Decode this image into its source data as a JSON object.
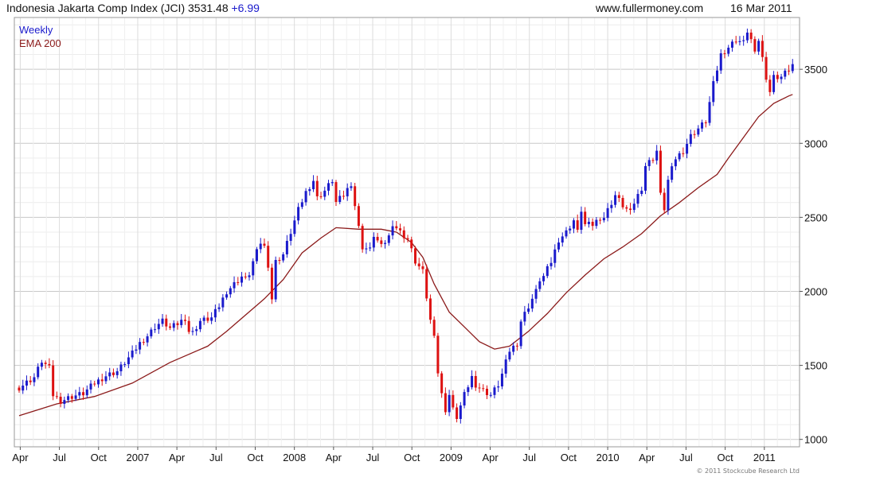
{
  "header": {
    "title": "Indonesia Jakarta Comp Index (JCI)",
    "last": "3531.48",
    "change": "+6.99",
    "site": "www.fullermoney.com",
    "date": "16 Mar 2011"
  },
  "copyright": "© 2011 Stockcube Research Ltd",
  "colors": {
    "up": "#1a1acc",
    "down": "#dd1111",
    "ema": "#8b1a1a",
    "legend_weekly": "#1a1acc",
    "legend_ema": "#8b1a1a"
  },
  "chart_data": {
    "type": "line",
    "title": "Indonesia Jakarta Comp Index (JCI)",
    "xlabel": "",
    "ylabel": "",
    "ylim": [
      950,
      3850
    ],
    "yticks": [
      1000,
      1500,
      2000,
      2500,
      3000,
      3500
    ],
    "xticks": [
      "Apr",
      "Jul",
      "Oct",
      "2007",
      "Apr",
      "Jul",
      "Oct",
      "2008",
      "Apr",
      "Jul",
      "Oct",
      "2009",
      "Apr",
      "Jul",
      "Oct",
      "2010",
      "Apr",
      "Jul",
      "Oct",
      "2011"
    ],
    "legend": [
      "Weekly",
      "EMA 200"
    ],
    "legend_position": "top-left",
    "grid": true,
    "series": [
      {
        "name": "Weekly",
        "points": [
          [
            0,
            1350
          ],
          [
            4,
            1420
          ],
          [
            6,
            1530
          ],
          [
            8,
            1480
          ],
          [
            9,
            1300
          ],
          [
            11,
            1260
          ],
          [
            14,
            1290
          ],
          [
            17,
            1310
          ],
          [
            20,
            1380
          ],
          [
            23,
            1430
          ],
          [
            26,
            1460
          ],
          [
            28,
            1520
          ],
          [
            30,
            1580
          ],
          [
            32,
            1650
          ],
          [
            34,
            1700
          ],
          [
            36,
            1760
          ],
          [
            38,
            1800
          ],
          [
            40,
            1750
          ],
          [
            42,
            1780
          ],
          [
            44,
            1820
          ],
          [
            45,
            1730
          ],
          [
            46,
            1720
          ],
          [
            48,
            1800
          ],
          [
            51,
            1820
          ],
          [
            53,
            1900
          ],
          [
            55,
            2000
          ],
          [
            57,
            2050
          ],
          [
            59,
            2100
          ],
          [
            60,
            2080
          ],
          [
            61,
            2120
          ],
          [
            62,
            2200
          ],
          [
            64,
            2330
          ],
          [
            65,
            2300
          ],
          [
            66,
            2180
          ],
          [
            67,
            1950
          ],
          [
            68,
            2200
          ],
          [
            70,
            2250
          ],
          [
            72,
            2400
          ],
          [
            74,
            2550
          ],
          [
            76,
            2670
          ],
          [
            78,
            2750
          ],
          [
            79,
            2630
          ],
          [
            81,
            2680
          ],
          [
            83,
            2750
          ],
          [
            84,
            2600
          ],
          [
            86,
            2650
          ],
          [
            88,
            2730
          ],
          [
            90,
            2430
          ],
          [
            91,
            2300
          ],
          [
            93,
            2280
          ],
          [
            94,
            2380
          ],
          [
            96,
            2300
          ],
          [
            98,
            2370
          ],
          [
            99,
            2460
          ],
          [
            101,
            2400
          ],
          [
            103,
            2350
          ],
          [
            105,
            2200
          ],
          [
            107,
            2130
          ],
          [
            108,
            1960
          ],
          [
            109,
            1800
          ],
          [
            110,
            1720
          ],
          [
            111,
            1450
          ],
          [
            112,
            1300
          ],
          [
            113,
            1200
          ],
          [
            114,
            1300
          ],
          [
            115,
            1200
          ],
          [
            116,
            1150
          ],
          [
            118,
            1300
          ],
          [
            120,
            1420
          ],
          [
            121,
            1370
          ],
          [
            123,
            1330
          ],
          [
            125,
            1300
          ],
          [
            127,
            1370
          ],
          [
            128,
            1440
          ],
          [
            130,
            1600
          ],
          [
            132,
            1650
          ],
          [
            133,
            1800
          ],
          [
            135,
            1900
          ],
          [
            137,
            2000
          ],
          [
            138,
            2080
          ],
          [
            139,
            2100
          ],
          [
            141,
            2200
          ],
          [
            143,
            2350
          ],
          [
            145,
            2400
          ],
          [
            147,
            2480
          ],
          [
            148,
            2400
          ],
          [
            149,
            2550
          ],
          [
            150,
            2450
          ],
          [
            152,
            2450
          ],
          [
            154,
            2500
          ],
          [
            155,
            2500
          ],
          [
            157,
            2600
          ],
          [
            158,
            2650
          ],
          [
            160,
            2580
          ],
          [
            162,
            2530
          ],
          [
            163,
            2600
          ],
          [
            165,
            2700
          ],
          [
            166,
            2850
          ],
          [
            168,
            2900
          ],
          [
            169,
            2950
          ],
          [
            170,
            2650
          ],
          [
            171,
            2560
          ],
          [
            172,
            2750
          ],
          [
            174,
            2900
          ],
          [
            176,
            2950
          ],
          [
            178,
            3050
          ],
          [
            180,
            3100
          ],
          [
            182,
            3150
          ],
          [
            184,
            3400
          ],
          [
            186,
            3600
          ],
          [
            188,
            3650
          ],
          [
            190,
            3700
          ],
          [
            192,
            3680
          ],
          [
            193,
            3760
          ],
          [
            194,
            3700
          ],
          [
            195,
            3600
          ],
          [
            196,
            3700
          ],
          [
            198,
            3450
          ],
          [
            199,
            3350
          ],
          [
            200,
            3450
          ],
          [
            202,
            3450
          ],
          [
            204,
            3500
          ],
          [
            205,
            3531
          ]
        ]
      },
      {
        "name": "EMA 200",
        "points": [
          [
            0,
            1160
          ],
          [
            10,
            1240
          ],
          [
            20,
            1290
          ],
          [
            30,
            1380
          ],
          [
            40,
            1520
          ],
          [
            50,
            1630
          ],
          [
            55,
            1730
          ],
          [
            60,
            1840
          ],
          [
            65,
            1950
          ],
          [
            70,
            2080
          ],
          [
            75,
            2260
          ],
          [
            80,
            2360
          ],
          [
            84,
            2430
          ],
          [
            90,
            2420
          ],
          [
            96,
            2420
          ],
          [
            100,
            2400
          ],
          [
            104,
            2330
          ],
          [
            107,
            2230
          ],
          [
            110,
            2050
          ],
          [
            114,
            1860
          ],
          [
            118,
            1760
          ],
          [
            122,
            1660
          ],
          [
            126,
            1610
          ],
          [
            130,
            1630
          ],
          [
            135,
            1730
          ],
          [
            140,
            1850
          ],
          [
            145,
            1990
          ],
          [
            150,
            2110
          ],
          [
            155,
            2220
          ],
          [
            160,
            2300
          ],
          [
            165,
            2390
          ],
          [
            170,
            2510
          ],
          [
            175,
            2600
          ],
          [
            180,
            2700
          ],
          [
            185,
            2790
          ],
          [
            188,
            2900
          ],
          [
            192,
            3040
          ],
          [
            196,
            3180
          ],
          [
            200,
            3270
          ],
          [
            204,
            3320
          ],
          [
            205,
            3330
          ]
        ]
      }
    ]
  }
}
